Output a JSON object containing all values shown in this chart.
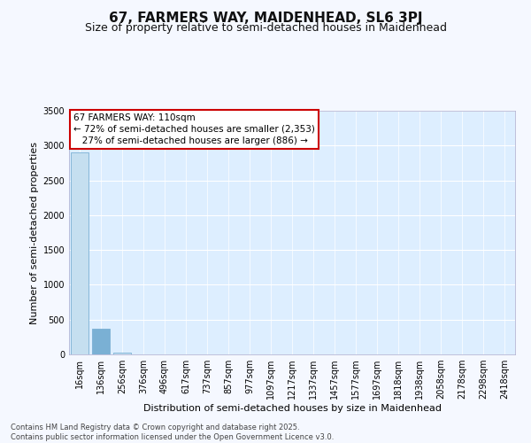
{
  "title": "67, FARMERS WAY, MAIDENHEAD, SL6 3PJ",
  "subtitle": "Size of property relative to semi-detached houses in Maidenhead",
  "xlabel": "Distribution of semi-detached houses by size in Maidenhead",
  "ylabel": "Number of semi-detached properties",
  "bin_labels": [
    "16sqm",
    "136sqm",
    "256sqm",
    "376sqm",
    "496sqm",
    "617sqm",
    "737sqm",
    "857sqm",
    "977sqm",
    "1097sqm",
    "1217sqm",
    "1337sqm",
    "1457sqm",
    "1577sqm",
    "1697sqm",
    "1818sqm",
    "1938sqm",
    "2058sqm",
    "2178sqm",
    "2298sqm",
    "2418sqm"
  ],
  "bin_values": [
    2900,
    370,
    30,
    4,
    1,
    0,
    0,
    0,
    0,
    0,
    0,
    0,
    0,
    0,
    0,
    0,
    0,
    0,
    0,
    0,
    0
  ],
  "bar_color": "#c5dff0",
  "bar_edge_color": "#7ab0d4",
  "highlight_bin": 1,
  "highlight_color": "#7ab0d4",
  "ylim": [
    0,
    3500
  ],
  "plot_bg_color": "#ddeeff",
  "fig_bg_color": "#f5f8ff",
  "grid_color": "#ffffff",
  "annotation_text": "67 FARMERS WAY: 110sqm\n← 72% of semi-detached houses are smaller (2,353)\n   27% of semi-detached houses are larger (886) →",
  "annotation_box_color": "#ffffff",
  "annotation_box_edge": "#cc0000",
  "footer_text": "Contains HM Land Registry data © Crown copyright and database right 2025.\nContains public sector information licensed under the Open Government Licence v3.0.",
  "title_fontsize": 11,
  "subtitle_fontsize": 9,
  "ylabel_fontsize": 8,
  "xlabel_fontsize": 8,
  "tick_fontsize": 7,
  "annotation_fontsize": 7.5,
  "footer_fontsize": 6
}
